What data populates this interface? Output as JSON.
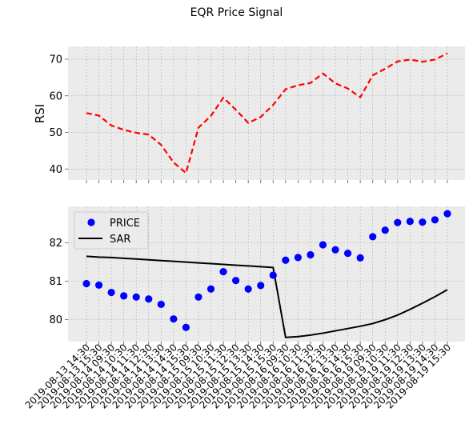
{
  "page": {
    "title": "EQR Price Signal"
  },
  "chart_data": [
    {
      "type": "line",
      "ylabel": "RSI",
      "ylim": [
        37,
        73.5
      ],
      "yticks": [
        40,
        50,
        60,
        70
      ],
      "grid": true,
      "series": [
        {
          "name": "RSI",
          "color": "#ff0000",
          "style": "dashed",
          "values": [
            55.3,
            54.6,
            51.9,
            50.7,
            49.9,
            49.4,
            46.6,
            41.8,
            38.9,
            51.3,
            54.5,
            59.5,
            56.2,
            52.6,
            54.2,
            57.5,
            61.8,
            62.9,
            63.5,
            66.1,
            63.4,
            62.0,
            59.6,
            65.6,
            67.4,
            69.4,
            69.9,
            69.3,
            69.9,
            71.6
          ]
        }
      ]
    },
    {
      "type": "line",
      "ylim": [
        79.43,
        82.95
      ],
      "yticks": [
        80,
        81,
        82
      ],
      "grid": true,
      "legend": "upper-left",
      "x": [
        "2019-08-13 14:30",
        "2019-08-13 15:30",
        "2019-08-14 09:30",
        "2019-08-14 10:30",
        "2019-08-14 11:30",
        "2019-08-14 12:30",
        "2019-08-14 13:30",
        "2019-08-14 14:30",
        "2019-08-14 15:30",
        "2019-08-15 09:30",
        "2019-08-15 10:30",
        "2019-08-15 11:30",
        "2019-08-15 12:30",
        "2019-08-15 13:30",
        "2019-08-15 14:30",
        "2019-08-15 15:30",
        "2019-08-16 09:30",
        "2019-08-16 10:30",
        "2019-08-16 11:30",
        "2019-08-16 12:30",
        "2019-08-16 13:30",
        "2019-08-16 14:30",
        "2019-08-16 15:30",
        "2019-08-19 09:30",
        "2019-08-19 10:30",
        "2019-08-19 11:30",
        "2019-08-19 12:30",
        "2019-08-19 13:30",
        "2019-08-19 14:30",
        "2019-08-19 15:30"
      ],
      "series": [
        {
          "name": "PRICE",
          "kind": "scatter",
          "color": "#0000ff",
          "values": [
            80.94,
            80.9,
            80.71,
            80.62,
            80.59,
            80.54,
            80.4,
            80.02,
            79.8,
            80.59,
            80.8,
            81.25,
            81.02,
            80.8,
            80.89,
            81.16,
            81.55,
            81.62,
            81.69,
            81.95,
            81.82,
            81.73,
            81.61,
            82.16,
            82.33,
            82.53,
            82.56,
            82.54,
            82.6,
            82.76
          ]
        },
        {
          "name": "SAR",
          "kind": "line",
          "color": "#000000",
          "values": [
            81.65,
            81.63,
            81.62,
            81.6,
            81.58,
            81.56,
            81.54,
            81.52,
            81.5,
            81.48,
            81.46,
            81.44,
            81.42,
            81.4,
            81.38,
            81.36,
            79.54,
            79.56,
            79.6,
            79.65,
            79.71,
            79.77,
            79.83,
            79.9,
            80.0,
            80.12,
            80.27,
            80.43,
            80.6,
            80.78
          ]
        }
      ]
    }
  ]
}
